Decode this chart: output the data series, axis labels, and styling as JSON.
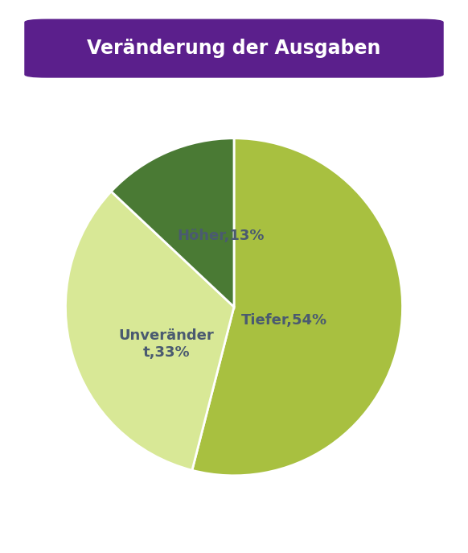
{
  "title": "Veränderung der Ausgaben",
  "title_bg_color": "#5B1F8C",
  "title_text_color": "#FFFFFF",
  "slices": [
    {
      "label": "Tiefer,54%",
      "value": 54,
      "color": "#A8C040"
    },
    {
      "label": "Unveränder\nt,33%",
      "value": 33,
      "color": "#D8E896"
    },
    {
      "label": "Höher,13%",
      "value": 13,
      "color": "#4A7A34"
    }
  ],
  "label_color": "#4A5A70",
  "label_fontsize": 13,
  "background_color": "#FFFFFF",
  "startangle": 90,
  "fig_width": 5.82,
  "fig_height": 6.87
}
